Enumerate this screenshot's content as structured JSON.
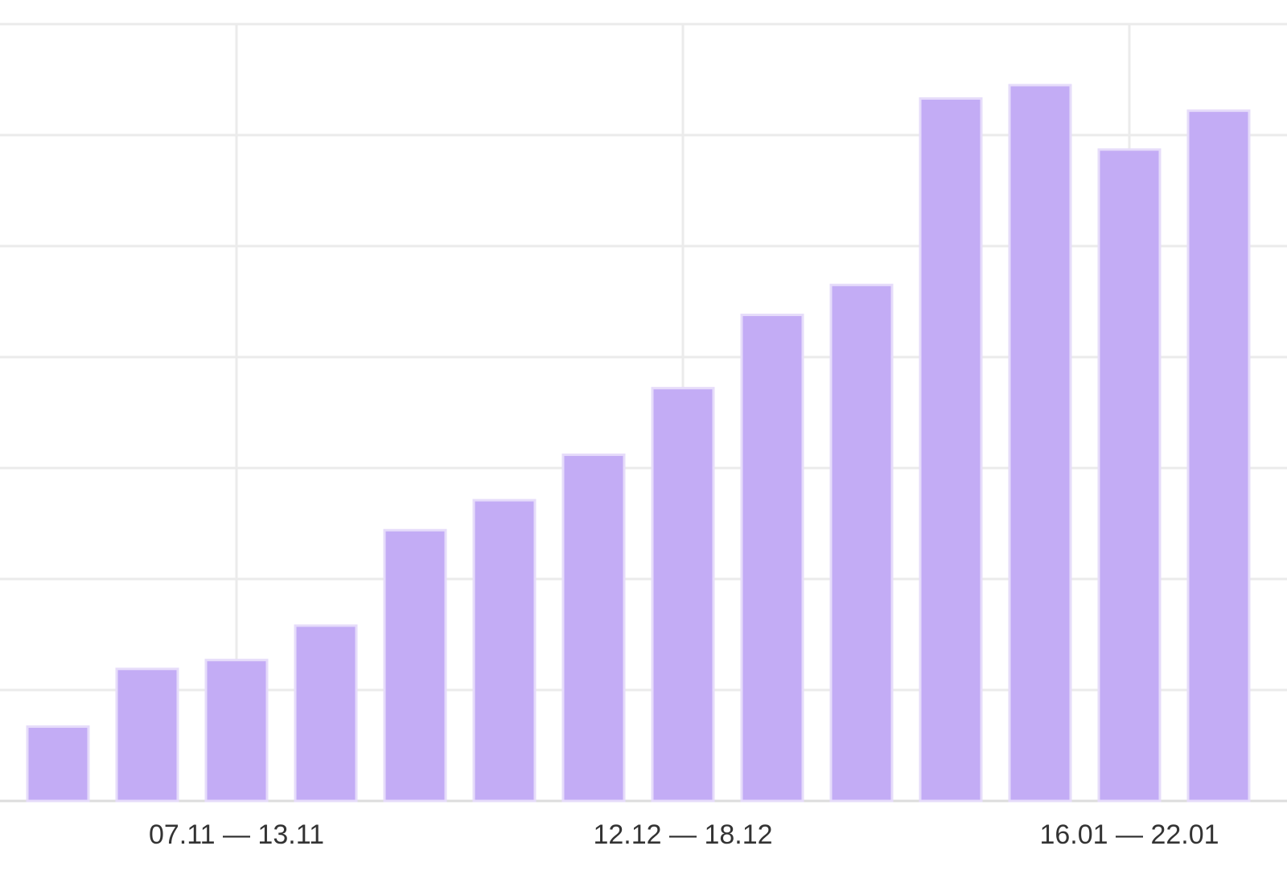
{
  "chart_data": {
    "type": "bar",
    "categories": [
      null,
      null,
      "07.11 — 13.11",
      null,
      null,
      null,
      null,
      "12.12 — 18.12",
      null,
      null,
      null,
      null,
      "16.01 — 22.01",
      null
    ],
    "values": [
      0.67,
      1.19,
      1.27,
      1.58,
      2.44,
      2.71,
      3.12,
      3.72,
      4.38,
      4.65,
      6.33,
      6.45,
      5.87,
      6.22
    ],
    "color": "#c3acf5",
    "ylim": [
      0,
      7
    ],
    "yticks": [
      0,
      1,
      2,
      3,
      4,
      5,
      6,
      7
    ],
    "grid": true
  }
}
